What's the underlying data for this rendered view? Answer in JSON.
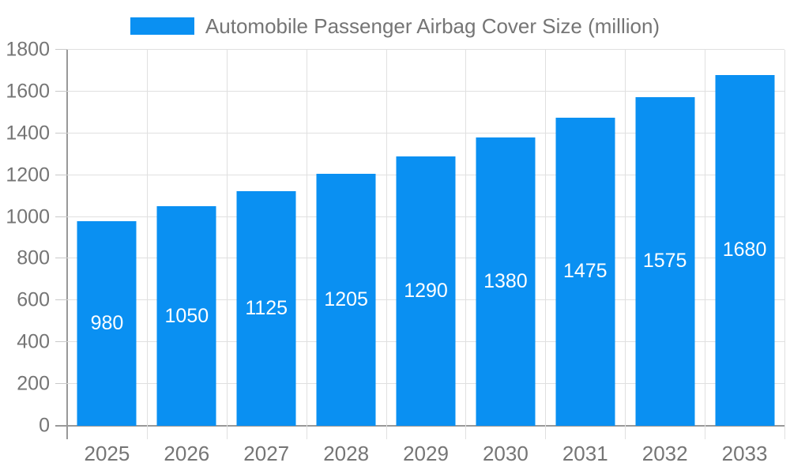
{
  "legend": {
    "label": "Automobile Passenger Airbag Cover Size (million)"
  },
  "colors": {
    "bar": "#0a90f2",
    "axis_text": "#757575",
    "grid": "#e0e0e0",
    "axis_line": "#999999",
    "value_label": "#ffffff",
    "background": "#ffffff"
  },
  "chart_data": {
    "type": "bar",
    "title": "Automobile Passenger Airbag Cover Size (million)",
    "categories": [
      "2025",
      "2026",
      "2027",
      "2028",
      "2029",
      "2030",
      "2031",
      "2032",
      "2033"
    ],
    "values": [
      980,
      1050,
      1125,
      1205,
      1290,
      1380,
      1475,
      1575,
      1680
    ],
    "xlabel": "",
    "ylabel": "",
    "ylim": [
      0,
      1800
    ],
    "ytick_step": 200,
    "grid": true,
    "legend_position": "top",
    "value_labels": "inside-center"
  }
}
